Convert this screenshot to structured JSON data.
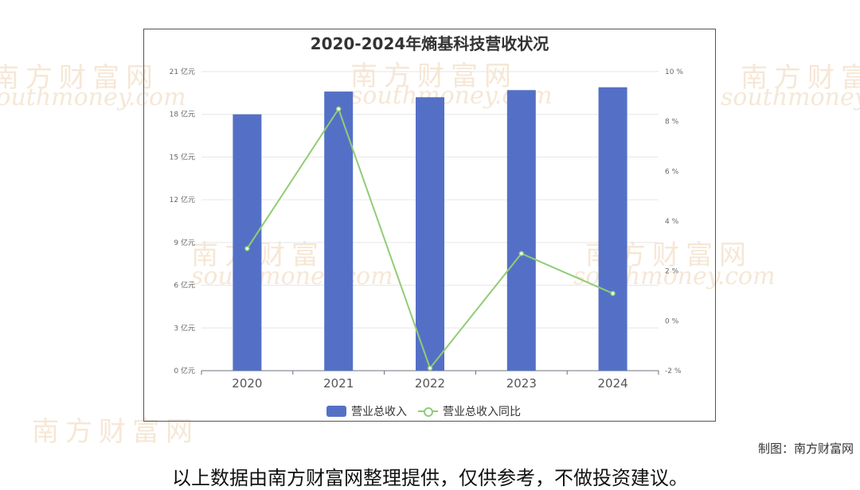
{
  "watermark": {
    "cn": "南方财富网",
    "en": "southmoney.com"
  },
  "chart_data": {
    "type": "bar",
    "title": "2020-2024年熵基科技营收状况",
    "categories": [
      "2020",
      "2021",
      "2022",
      "2023",
      "2024"
    ],
    "series": [
      {
        "name": "营业总收入",
        "type": "bar",
        "axis": "left",
        "values": [
          18.0,
          19.6,
          19.2,
          19.7,
          19.9
        ],
        "color": "#5470c6"
      },
      {
        "name": "营业总收入同比",
        "type": "line",
        "axis": "right",
        "values": [
          2.9,
          8.5,
          -1.9,
          2.7,
          1.1
        ],
        "color": "#91cc75"
      }
    ],
    "y_left": {
      "ylim": [
        0,
        21
      ],
      "ticks": [
        0,
        3,
        6,
        9,
        12,
        15,
        18,
        21
      ],
      "unit": "亿元"
    },
    "y_right": {
      "ylim": [
        -2,
        10
      ],
      "ticks": [
        -2,
        0,
        2,
        4,
        6,
        8,
        10
      ],
      "unit": "%"
    },
    "grid": true,
    "legend": "bottom"
  },
  "credit": "制图：南方财富网",
  "footer_note": "以上数据由南方财富网整理提供，仅供参考，不做投资建议。"
}
